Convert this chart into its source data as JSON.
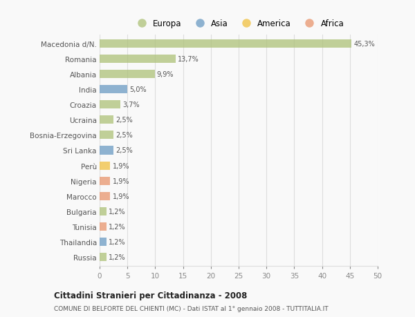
{
  "categories": [
    "Macedonia d/N.",
    "Romania",
    "Albania",
    "India",
    "Croazia",
    "Ucraina",
    "Bosnia-Erzegovina",
    "Sri Lanka",
    "Perù",
    "Nigeria",
    "Marocco",
    "Bulgaria",
    "Tunisia",
    "Thailandia",
    "Russia"
  ],
  "values": [
    45.3,
    13.7,
    9.9,
    5.0,
    3.7,
    2.5,
    2.5,
    2.5,
    1.9,
    1.9,
    1.9,
    1.2,
    1.2,
    1.2,
    1.2
  ],
  "labels": [
    "45,3%",
    "13,7%",
    "9,9%",
    "5,0%",
    "3,7%",
    "2,5%",
    "2,5%",
    "2,5%",
    "1,9%",
    "1,9%",
    "1,9%",
    "1,2%",
    "1,2%",
    "1,2%",
    "1,2%"
  ],
  "continents": [
    "Europa",
    "Europa",
    "Europa",
    "Asia",
    "Europa",
    "Europa",
    "Europa",
    "Asia",
    "America",
    "Africa",
    "Africa",
    "Europa",
    "Africa",
    "Asia",
    "Europa"
  ],
  "continent_colors": {
    "Europa": "#adc178",
    "Asia": "#6b9bc3",
    "America": "#f0c040",
    "Africa": "#e8956d"
  },
  "legend_order": [
    "Europa",
    "Asia",
    "America",
    "Africa"
  ],
  "title": "Cittadini Stranieri per Cittadinanza - 2008",
  "subtitle": "COMUNE DI BELFORTE DEL CHIENTI (MC) - Dati ISTAT al 1° gennaio 2008 - TUTTITALIA.IT",
  "xlim": [
    0,
    50
  ],
  "xticks": [
    0,
    5,
    10,
    15,
    20,
    25,
    30,
    35,
    40,
    45,
    50
  ],
  "background_color": "#f9f9f9",
  "grid_color": "#dddddd",
  "bar_alpha": 0.75
}
